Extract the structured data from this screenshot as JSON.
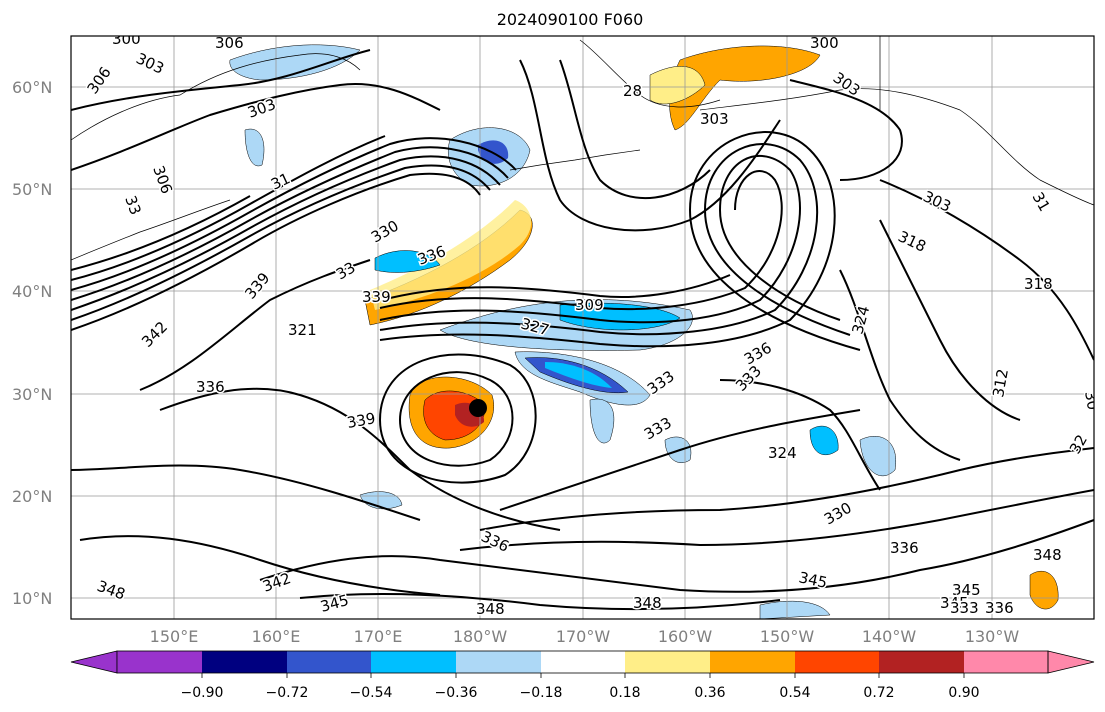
{
  "title": "2024090100 F060",
  "latitude_labels": [
    "60°N",
    "50°N",
    "40°N",
    "30°N",
    "20°N",
    "10°N"
  ],
  "longitude_labels": [
    "150°E",
    "160°E",
    "170°E",
    "180°W",
    "170°W",
    "160°W",
    "150°W",
    "140°W",
    "130°W"
  ],
  "colorbar": {
    "colors": [
      "#9933cc",
      "#000080",
      "#3355cc",
      "#00bfff",
      "#add8f6",
      "#ffffff",
      "#ffee88",
      "#ffa500",
      "#ff4500",
      "#b22222",
      "#ff88aa"
    ],
    "levels": [
      "−0.90",
      "−0.72",
      "−0.54",
      "−0.36",
      "−0.18",
      "0.18",
      "0.36",
      "0.54",
      "0.72",
      "0.90"
    ]
  },
  "contour_labels": [
    {
      "text": "300"
    },
    {
      "text": "303"
    },
    {
      "text": "306"
    },
    {
      "text": "306"
    },
    {
      "text": "303"
    },
    {
      "text": "306"
    },
    {
      "text": "31"
    },
    {
      "text": "300"
    },
    {
      "text": "303"
    },
    {
      "text": "303"
    },
    {
      "text": "28"
    },
    {
      "text": "303"
    },
    {
      "text": "318"
    },
    {
      "text": "318"
    },
    {
      "text": "330"
    },
    {
      "text": "336"
    },
    {
      "text": "339"
    },
    {
      "text": "33"
    },
    {
      "text": "339"
    },
    {
      "text": "342"
    },
    {
      "text": "321"
    },
    {
      "text": "309"
    },
    {
      "text": "327"
    },
    {
      "text": "324"
    },
    {
      "text": "336"
    },
    {
      "text": "333"
    },
    {
      "text": "312"
    },
    {
      "text": "336"
    },
    {
      "text": "339"
    },
    {
      "text": "333"
    },
    {
      "text": "333"
    },
    {
      "text": "324"
    },
    {
      "text": "330"
    },
    {
      "text": "336"
    },
    {
      "text": "348"
    },
    {
      "text": "342"
    },
    {
      "text": "345"
    },
    {
      "text": "348"
    },
    {
      "text": "348"
    },
    {
      "text": "345"
    },
    {
      "text": "336"
    },
    {
      "text": "345"
    },
    {
      "text": "348"
    },
    {
      "text": "345"
    },
    {
      "text": "333"
    },
    {
      "text": "336"
    },
    {
      "text": "31"
    },
    {
      "text": "32"
    },
    {
      "text": "30"
    },
    {
      "text": "33"
    }
  ]
}
